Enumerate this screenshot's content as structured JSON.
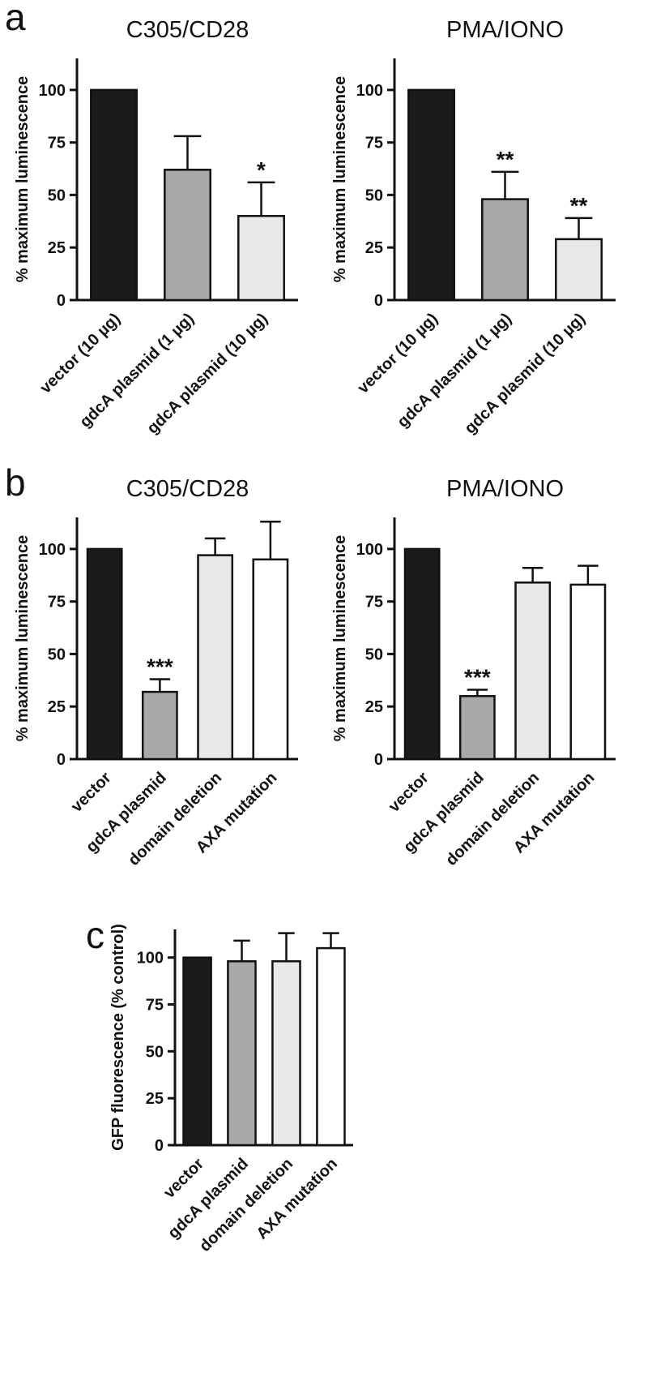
{
  "figure": {
    "panels": [
      {
        "label": "a"
      },
      {
        "label": "b"
      },
      {
        "label": "c"
      }
    ]
  },
  "palette": {
    "black": "#1b1b1b",
    "gray": "#a9a9a9",
    "light_gray": "#e8e8e8",
    "white": "#ffffff",
    "axis": "#111111"
  },
  "chart_data": [
    {
      "panel": "a",
      "type": "bar",
      "title": "C305/CD28",
      "ylabel": "% maximum luminescence",
      "ylim": [
        0,
        115
      ],
      "yticks": [
        0,
        25,
        50,
        75,
        100
      ],
      "categories": [
        "vector (10 µg)",
        "gdcA plasmid (1 µg)",
        "gdcA plasmid (10 µg)"
      ],
      "values": [
        100,
        62,
        40
      ],
      "errors_up": [
        0,
        16,
        16
      ],
      "significance": [
        "",
        "",
        "*"
      ],
      "bar_colors": [
        "black",
        "gray",
        "light_gray"
      ],
      "grid": false,
      "legend": "none"
    },
    {
      "panel": "a",
      "type": "bar",
      "title": "PMA/IONO",
      "ylabel": "% maximum luminescence",
      "ylim": [
        0,
        115
      ],
      "yticks": [
        0,
        25,
        50,
        75,
        100
      ],
      "categories": [
        "vector (10 µg)",
        "gdcA plasmid (1 µg)",
        "gdcA plasmid (10 µg)"
      ],
      "values": [
        100,
        48,
        29
      ],
      "errors_up": [
        0,
        13,
        10
      ],
      "significance": [
        "",
        "**",
        "**"
      ],
      "bar_colors": [
        "black",
        "gray",
        "light_gray"
      ],
      "grid": false,
      "legend": "none"
    },
    {
      "panel": "b",
      "type": "bar",
      "title": "C305/CD28",
      "ylabel": "% maximum luminescence",
      "ylim": [
        0,
        115
      ],
      "yticks": [
        0,
        25,
        50,
        75,
        100
      ],
      "categories": [
        "vector",
        "gdcA plasmid",
        "domain deletion",
        "AXA mutation"
      ],
      "values": [
        100,
        32,
        97,
        95
      ],
      "errors_up": [
        0,
        6,
        8,
        18
      ],
      "significance": [
        "",
        "***",
        "",
        ""
      ],
      "bar_colors": [
        "black",
        "gray",
        "light_gray",
        "white"
      ],
      "grid": false,
      "legend": "none"
    },
    {
      "panel": "b",
      "type": "bar",
      "title": "PMA/IONO",
      "ylabel": "% maximum luminescence",
      "ylim": [
        0,
        115
      ],
      "yticks": [
        0,
        25,
        50,
        75,
        100
      ],
      "categories": [
        "vector",
        "gdcA plasmid",
        "domain deletion",
        "AXA mutation"
      ],
      "values": [
        100,
        30,
        84,
        83
      ],
      "errors_up": [
        0,
        3,
        7,
        9
      ],
      "significance": [
        "",
        "***",
        "",
        ""
      ],
      "bar_colors": [
        "black",
        "gray",
        "light_gray",
        "white"
      ],
      "grid": false,
      "legend": "none"
    },
    {
      "panel": "c",
      "type": "bar",
      "title": "",
      "ylabel": "GFP fluorescence (% control)",
      "ylim": [
        0,
        115
      ],
      "yticks": [
        0,
        25,
        50,
        75,
        100
      ],
      "categories": [
        "vector",
        "gdcA plasmid",
        "domain deletion",
        "AXA mutation"
      ],
      "values": [
        100,
        98,
        98,
        105
      ],
      "errors_up": [
        0,
        11,
        15,
        8
      ],
      "significance": [
        "",
        "",
        "",
        ""
      ],
      "bar_colors": [
        "black",
        "gray",
        "light_gray",
        "white"
      ],
      "grid": false,
      "legend": "none"
    }
  ]
}
